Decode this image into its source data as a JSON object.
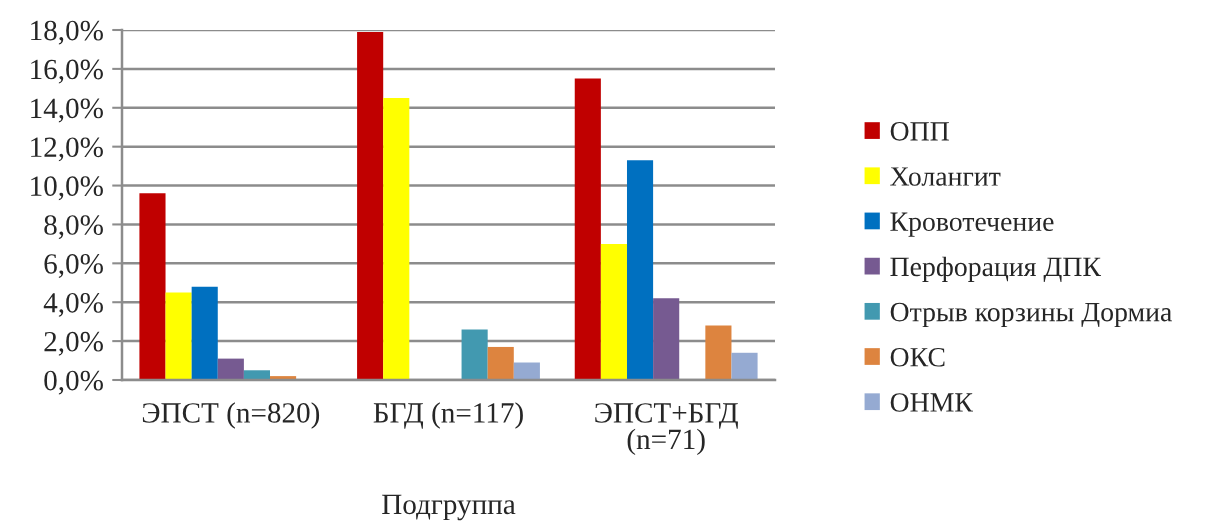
{
  "chart_data": {
    "type": "bar",
    "xlabel": "Подгруппа",
    "categories": [
      "ЭПСТ (n=820)",
      "БГД (n=117)",
      "ЭПСТ+БГД (n=71)"
    ],
    "series": [
      {
        "name": "ОПП",
        "color": "#c00000",
        "values": [
          9.6,
          17.9,
          15.5
        ]
      },
      {
        "name": "Холангит",
        "color": "#ffff00",
        "values": [
          4.5,
          14.5,
          7.0
        ]
      },
      {
        "name": "Кровотечение",
        "color": "#0070c0",
        "values": [
          4.8,
          0,
          11.3
        ]
      },
      {
        "name": "Перфорация ДПК",
        "color": "#765a91",
        "values": [
          1.1,
          0,
          4.2
        ]
      },
      {
        "name": "Отрыв корзины Дормиа",
        "color": "#4299b0",
        "values": [
          0.5,
          2.6,
          0
        ]
      },
      {
        "name": "ОКС",
        "color": "#dd843f",
        "values": [
          0.2,
          1.7,
          2.8
        ]
      },
      {
        "name": "ОНМК",
        "color": "#95aad2",
        "values": [
          0,
          0.9,
          1.4
        ]
      }
    ],
    "ylim": [
      0,
      18
    ],
    "yticks": [
      {
        "value": 0,
        "label": "0,0%"
      },
      {
        "value": 2,
        "label": "2,0%"
      },
      {
        "value": 4,
        "label": "4,0%"
      },
      {
        "value": 6,
        "label": "6,0%"
      },
      {
        "value": 8,
        "label": "8,0%"
      },
      {
        "value": 10,
        "label": "10,0%"
      },
      {
        "value": 12,
        "label": "12,0%"
      },
      {
        "value": 14,
        "label": "14,0%"
      },
      {
        "value": 16,
        "label": "16,0%"
      },
      {
        "value": 18,
        "label": "18,0%"
      }
    ],
    "grid": "y",
    "legend": "right"
  }
}
